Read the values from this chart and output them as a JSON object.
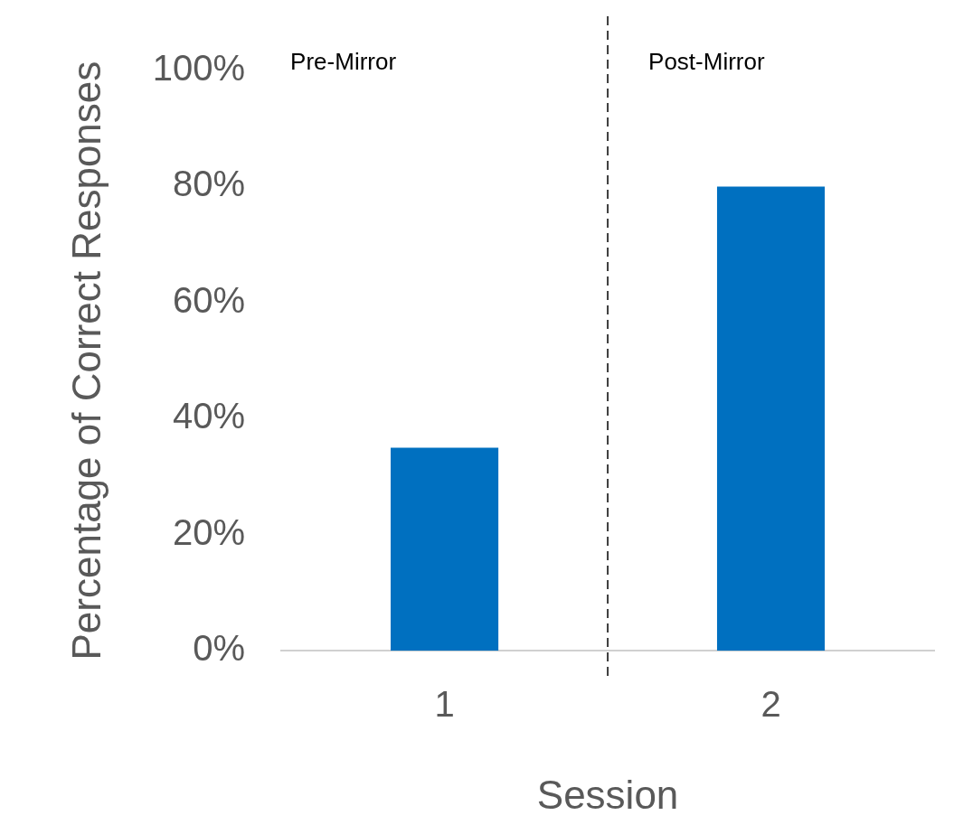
{
  "chart_data": {
    "type": "bar",
    "xlabel": "Session",
    "ylabel": "Percentage of Correct Responses",
    "categories": [
      "1",
      "2"
    ],
    "values": [
      35,
      80
    ],
    "color": "#0070c0",
    "ylim": [
      0,
      100
    ],
    "yticks": [
      {
        "value": 0,
        "label": "0%"
      },
      {
        "value": 20,
        "label": "20%"
      },
      {
        "value": 40,
        "label": "40%"
      },
      {
        "value": 60,
        "label": "60%"
      },
      {
        "value": 80,
        "label": "80%"
      },
      {
        "value": 100,
        "label": "100%"
      }
    ],
    "grid": false,
    "legend": false,
    "annotations": [
      "Pre-Mirror",
      "Post-Mirror"
    ]
  }
}
